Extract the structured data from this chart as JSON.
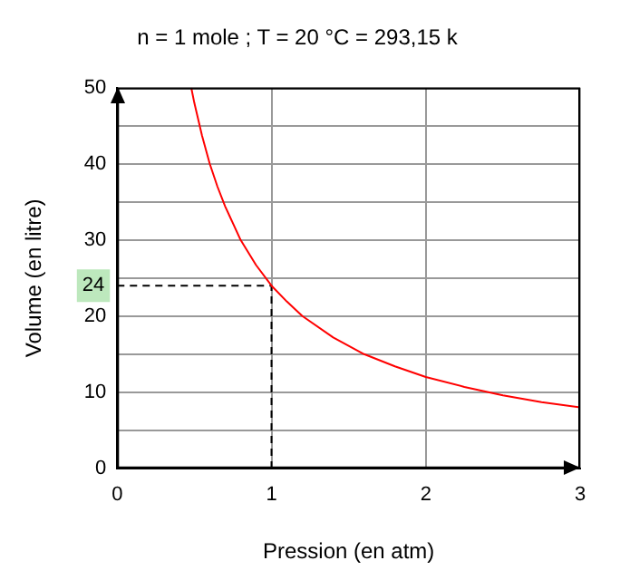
{
  "chart_data": {
    "type": "line",
    "title": "n = 1 mole ; T = 20 °C = 293,15 k",
    "xlabel": "Pression (en atm)",
    "ylabel": "Volume (en litre)",
    "series": [
      {
        "color": "#ff0000",
        "x": [
          0.48,
          0.5,
          0.55,
          0.6,
          0.65,
          0.7,
          0.8,
          0.9,
          1,
          1.1,
          1.2,
          1.4,
          1.6,
          1.8,
          2,
          2.25,
          2.5,
          2.75,
          3
        ],
        "values": [
          50,
          48,
          43.7,
          40,
          37,
          34.4,
          30,
          26.7,
          24,
          21.9,
          20,
          17.2,
          15,
          13.4,
          12,
          10.7,
          9.6,
          8.7,
          8
        ]
      },
      {
        "type": "line",
        "color": "#000000",
        "line_style": "dashed",
        "x": [
          0,
          1,
          1
        ],
        "values": [
          24,
          24,
          0
        ]
      }
    ],
    "xlim": [
      0,
      3
    ],
    "ylim": [
      0,
      50
    ],
    "xticks": [
      0,
      1,
      2,
      3
    ],
    "yticks": [
      0,
      {
        "value": 5,
        "label": null
      },
      10,
      {
        "value": 15,
        "label": null
      },
      20,
      {
        "value": 25,
        "label": null
      },
      30,
      {
        "value": 35,
        "label": null
      },
      40,
      {
        "value": 45,
        "label": null
      },
      50
    ],
    "grid": true,
    "legend": false,
    "marker": "none",
    "annotations": [
      {
        "text": "24",
        "x": 0,
        "y": 24
      }
    ]
  }
}
